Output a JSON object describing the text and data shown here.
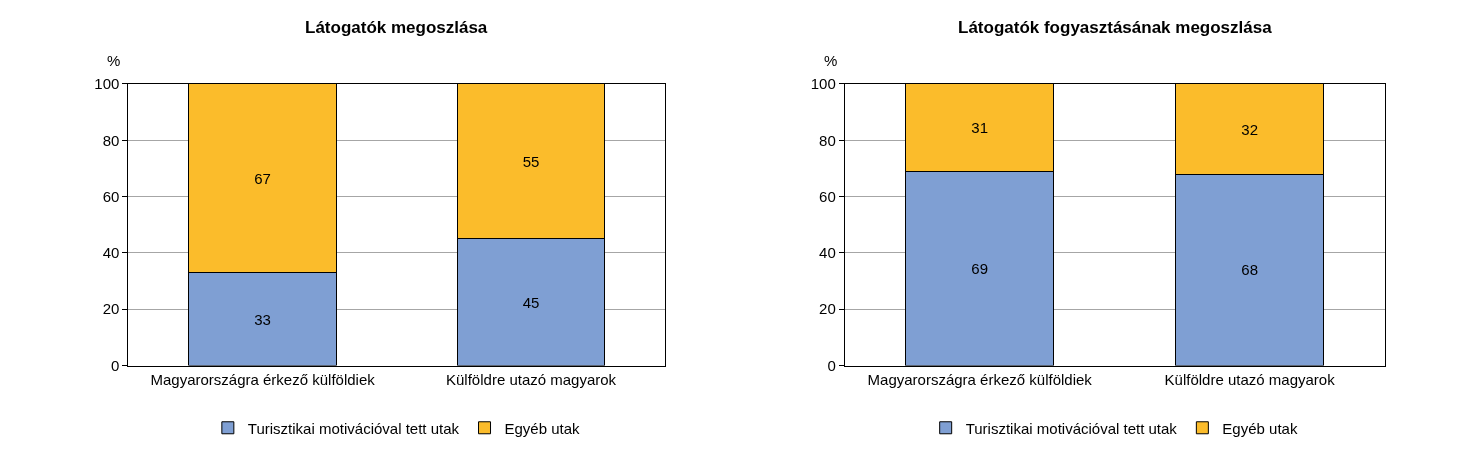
{
  "chart_data": [
    {
      "type": "bar",
      "title": "Látogatók megoszlása",
      "ylabel": "%",
      "categories": [
        "Magyarországra érkező külföldiek",
        "Külföldre utazó magyarok"
      ],
      "stacked": true,
      "ylim": [
        0,
        100
      ],
      "yticks": [
        0,
        20,
        40,
        60,
        80,
        100
      ],
      "grid": "y",
      "legend": "bottom",
      "data_labels": true,
      "series": [
        {
          "name": "Turisztikai motivációval tett utak",
          "color": "#7f9fd3",
          "values": [
            33,
            45
          ]
        },
        {
          "name": "Egyéb utak",
          "color": "#fbbc2b",
          "values": [
            67,
            55
          ]
        }
      ]
    },
    {
      "type": "bar",
      "title": "Látogatók fogyasztásának megoszlása",
      "ylabel": "%",
      "categories": [
        "Magyarországra érkező külföldiek",
        "Külföldre utazó magyarok"
      ],
      "stacked": true,
      "ylim": [
        0,
        100
      ],
      "yticks": [
        0,
        20,
        40,
        60,
        80,
        100
      ],
      "grid": "y",
      "legend": "bottom",
      "data_labels": true,
      "series": [
        {
          "name": "Turisztikai motivációval tett utak",
          "color": "#7f9fd3",
          "values": [
            69,
            68
          ]
        },
        {
          "name": "Egyéb utak",
          "color": "#fbbc2b",
          "values": [
            31,
            32
          ]
        }
      ]
    }
  ]
}
